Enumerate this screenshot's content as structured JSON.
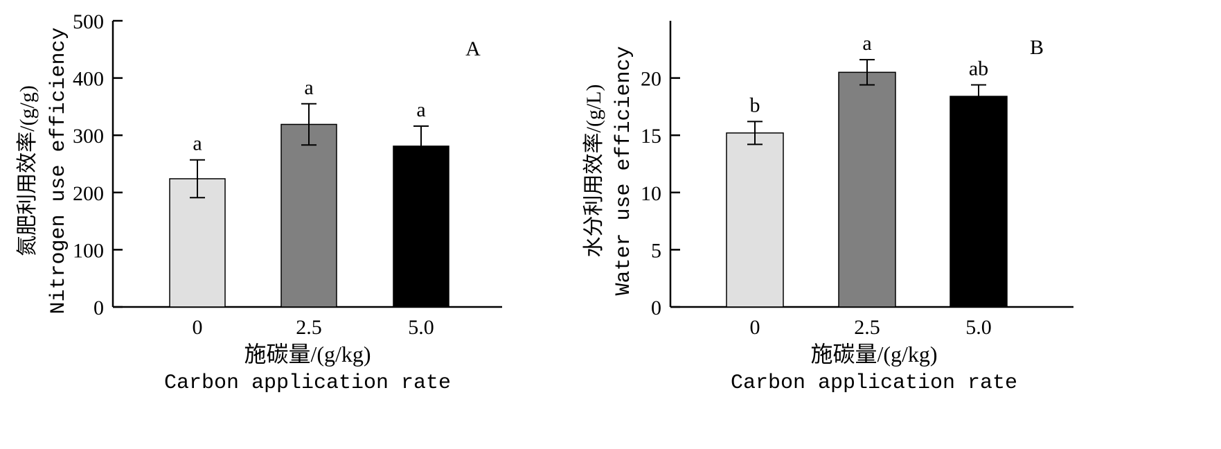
{
  "chart_data": [
    {
      "type": "bar",
      "panel_label": "A",
      "categories": [
        "0",
        "2.5",
        "5.0"
      ],
      "values": [
        224,
        319,
        281
      ],
      "errors": [
        33,
        36,
        35
      ],
      "significance": [
        "a",
        "a",
        "a"
      ],
      "bar_colors": [
        "#e0e0e0",
        "#808080",
        "#000000"
      ],
      "ylim": [
        0,
        500
      ],
      "yticks": [
        "0",
        "100",
        "200",
        "300",
        "400",
        "500"
      ],
      "ylabel_cn": "氮肥利用效率/(g/g)",
      "ylabel_en": "Nitrogen use efficiency",
      "xlabel_cn": "施碳量/(g/kg)",
      "xlabel_en": "Carbon application rate"
    },
    {
      "type": "bar",
      "panel_label": "B",
      "categories": [
        "0",
        "2.5",
        "5.0"
      ],
      "values": [
        15.2,
        20.5,
        18.4
      ],
      "errors": [
        1.0,
        1.1,
        1.0
      ],
      "significance": [
        "b",
        "a",
        "ab"
      ],
      "bar_colors": [
        "#e0e0e0",
        "#808080",
        "#000000"
      ],
      "ylim": [
        0,
        25
      ],
      "yticks": [
        "0",
        "5",
        "10",
        "15",
        "20"
      ],
      "ylabel_cn": "水分利用效率/(g/L)",
      "ylabel_en": "Water use efficiency",
      "xlabel_cn": "施碳量/(g/kg)",
      "xlabel_en": "Carbon application rate"
    }
  ]
}
